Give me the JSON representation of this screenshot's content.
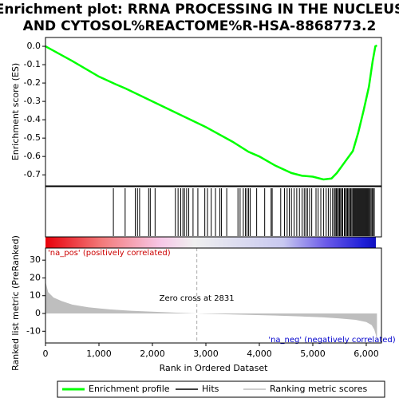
{
  "chart_data": [
    {
      "type": "line",
      "title": [
        "Enrichment plot: RRNA PROCESSING IN THE NUCLEUS",
        "AND CYTOSOL%REACTOME%R-HSA-8868773.2"
      ],
      "ylabel": "Enrichment score (ES)",
      "xlim": [
        0,
        6284
      ],
      "ylim": [
        -0.76,
        0.048
      ],
      "yticks": [
        {
          "value": 0,
          "label": "0.0"
        },
        -0.1,
        -0.2,
        -0.3,
        -0.4,
        -0.5,
        -0.6,
        -0.7
      ],
      "series": [
        {
          "name": "Enrichment profile",
          "color": "#00ff00",
          "x": [
            0,
            500,
            1000,
            1300,
            1500,
            2000,
            2500,
            3000,
            3500,
            3800,
            4000,
            4300,
            4600,
            4800,
            5000,
            5200,
            5350,
            5450,
            5600,
            5750,
            5850,
            5950,
            6050,
            6120,
            6170,
            6200
          ],
          "values": [
            0,
            -0.08,
            -0.165,
            -0.205,
            -0.23,
            -0.3,
            -0.37,
            -0.44,
            -0.52,
            -0.575,
            -0.6,
            -0.65,
            -0.69,
            -0.705,
            -0.71,
            -0.725,
            -0.72,
            -0.69,
            -0.63,
            -0.57,
            -0.47,
            -0.35,
            -0.22,
            -0.08,
            0,
            0.005
          ]
        }
      ]
    },
    {
      "type": "hits",
      "xlim": [
        0,
        6284
      ],
      "series": [
        {
          "name": "Hits",
          "color": "#000000",
          "x": [
            1270,
            1490,
            1680,
            1720,
            1760,
            1930,
            1960,
            2050,
            2430,
            2480,
            2530,
            2570,
            2600,
            2640,
            2680,
            2760,
            2850,
            2980,
            3030,
            3100,
            3180,
            3260,
            3290,
            3390,
            3600,
            3640,
            3700,
            3740,
            3770,
            3800,
            3830,
            3950,
            4100,
            4220,
            4240,
            4400,
            4470,
            4520,
            4560,
            4600,
            4650,
            4700,
            4750,
            4800,
            4840,
            4870,
            4900,
            4940,
            4980,
            5060,
            5100,
            5150,
            5200,
            5250,
            5290,
            5330,
            5370,
            5400,
            5420,
            5440,
            5460,
            5480,
            5500,
            5520,
            5540,
            5560,
            5590,
            5610,
            5630,
            5650,
            5670,
            5690,
            5710,
            5730,
            5750,
            5765,
            5780,
            5795,
            5810,
            5825,
            5840,
            5855,
            5870,
            5885,
            5900,
            5915,
            5930,
            5945,
            5960,
            5975,
            5990,
            6005,
            6020,
            6035,
            6050,
            6070,
            6090,
            6110,
            6130,
            6150
          ]
        }
      ]
    },
    {
      "type": "area",
      "xlabel": "Rank in Ordered Dataset",
      "ylabel": "Ranked list metric (PreRanked)",
      "xlim": [
        0,
        6284
      ],
      "ylim": [
        -16.6,
        36.8
      ],
      "xticks": [
        0,
        {
          "value": 1000,
          "label": "1,000"
        },
        {
          "value": 2000,
          "label": "2,000"
        },
        {
          "value": 3000,
          "label": "3,000"
        },
        {
          "value": 4000,
          "label": "4,000"
        },
        {
          "value": 5000,
          "label": "5,000"
        },
        {
          "value": 6000,
          "label": "6,000"
        }
      ],
      "yticks": [
        30,
        20,
        10,
        0,
        -10
      ],
      "annotations": [
        {
          "text": "'na_pos' (positively correlated)"
        },
        {
          "text": "Zero cross at 2831",
          "x": 2831
        },
        {
          "text": "'na_neg' (negatively correlated)"
        }
      ],
      "series": [
        {
          "name": "Ranking metric scores",
          "color": "#bebebe",
          "x": [
            0,
            50,
            150,
            300,
            500,
            800,
            1200,
            1600,
            2000,
            2400,
            2831,
            3300,
            3800,
            4300,
            4800,
            5200,
            5500,
            5800,
            6000,
            6100,
            6150,
            6180,
            6200
          ],
          "values": [
            18,
            12,
            9,
            7,
            5,
            3.5,
            2.3,
            1.5,
            1,
            0.5,
            0,
            -0.4,
            -0.8,
            -1.2,
            -1.7,
            -2.2,
            -2.8,
            -3.6,
            -4.8,
            -6.5,
            -9,
            -12,
            -16
          ]
        }
      ]
    }
  ]
}
